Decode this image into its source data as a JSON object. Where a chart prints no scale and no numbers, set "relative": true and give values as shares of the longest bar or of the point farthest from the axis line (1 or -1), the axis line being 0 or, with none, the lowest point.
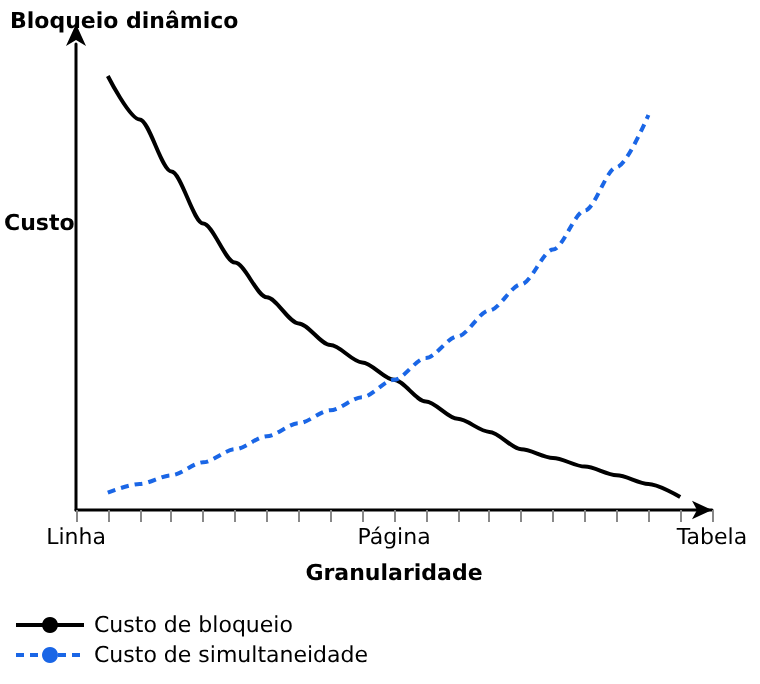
{
  "chart_data": {
    "type": "line",
    "title": "Bloqueio dinâmico",
    "ylabel": "Custo",
    "xlabel": "Granularidade",
    "relative": true,
    "tick_labels": "x",
    "marker": "none",
    "legend": "bottom left",
    "grid": false,
    "categories": [
      "Linha",
      null,
      null,
      null,
      null,
      null,
      null,
      null,
      null,
      null,
      "Página",
      null,
      null,
      null,
      null,
      null,
      null,
      null,
      null,
      null,
      "Tabela"
    ],
    "series": [
      {
        "name": "Custo de bloqueio",
        "color": "#000000",
        "line_style": "solid",
        "values": [
          null,
          1,
          0.9,
          0.78,
          0.66,
          0.57,
          0.49,
          0.43,
          0.38,
          0.34,
          0.3,
          0.25,
          0.21,
          0.18,
          0.14,
          0.12,
          0.1,
          0.08,
          0.06,
          0.03,
          null
        ]
      },
      {
        "name": "Custo de simultaneidade",
        "color": "#1a66e6",
        "line_style": "dashed",
        "values": [
          null,
          0.04,
          0.06,
          0.08,
          0.11,
          0.14,
          0.17,
          0.2,
          0.23,
          0.26,
          0.3,
          0.35,
          0.4,
          0.46,
          0.52,
          0.6,
          0.69,
          0.79,
          0.91,
          null,
          null
        ]
      }
    ]
  }
}
